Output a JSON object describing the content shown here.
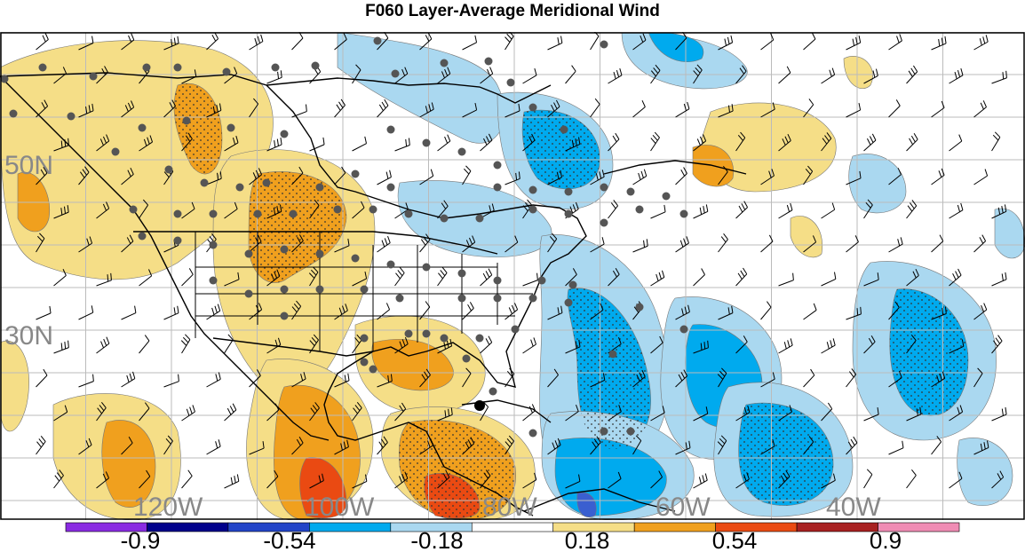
{
  "title": "F060 Layer-Average Meridional Wind",
  "lat_labels": [
    "50N",
    "30N"
  ],
  "lon_labels": [
    "120W",
    "100W",
    "80W",
    "60W",
    "40W"
  ],
  "colorbar": {
    "colors": [
      "#8a2be2",
      "#00008b",
      "#2244c8",
      "#00aaee",
      "#aad8f0",
      "#ffffff",
      "#f5de87",
      "#f0a01e",
      "#ea4a12",
      "#a82020",
      "#f08cb4"
    ],
    "labels": [
      "-0.9",
      "-0.54",
      "-0.18",
      "0.18",
      "0.54",
      "0.9"
    ]
  },
  "palette": {
    "light_blue": "#aad8f0",
    "blue": "#00aaee",
    "dark_blue": "#3a5fd0",
    "light_yellow": "#f5de87",
    "orange": "#f0a01e",
    "red_orange": "#ea4a12",
    "station_dot": "#555555",
    "grid": "#bbbbbb"
  }
}
